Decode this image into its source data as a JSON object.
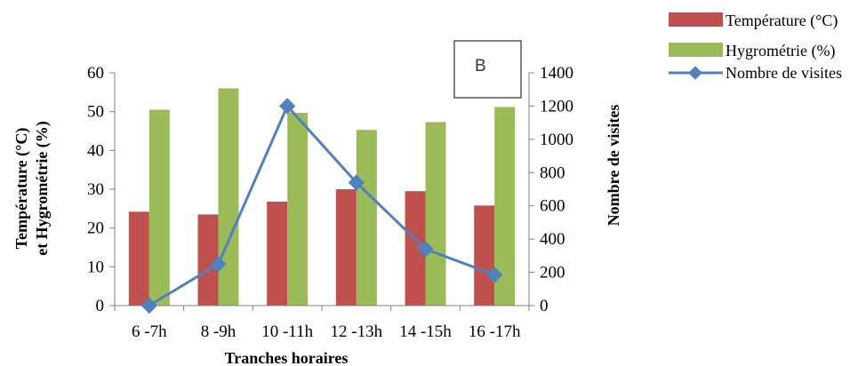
{
  "chart_data": {
    "type": "bar",
    "categories": [
      "6 -7h",
      "8 -9h",
      "10 -11h",
      "12 -13h",
      "14 -15h",
      "16 -17h"
    ],
    "series": [
      {
        "name": "Température (°C)",
        "type": "bar",
        "axis": "left",
        "color": "#c0504d",
        "values": [
          24.2,
          23.5,
          26.8,
          30,
          29.5,
          25.8
        ]
      },
      {
        "name": "Hygrométrie (%)",
        "type": "bar",
        "axis": "left",
        "color": "#9bbb59",
        "values": [
          50.5,
          56,
          49.7,
          45.3,
          47.3,
          51.2
        ]
      },
      {
        "name": "Nombre de visites",
        "type": "line",
        "axis": "right",
        "color": "#4f81bd",
        "values": [
          0,
          250,
          1200,
          740,
          340,
          185
        ]
      }
    ],
    "xlabel": "Tranches horaires",
    "ylabel_left_line1": "Température (°C)",
    "ylabel_left_line2": "et Hygrométrie (%)",
    "ylabel_right": "Nombre de visites",
    "ylim_left": [
      0,
      60
    ],
    "ylim_right": [
      0,
      1400
    ],
    "yticks_left": [
      "0",
      "10",
      "20",
      "30",
      "40",
      "50",
      "60"
    ],
    "yticks_right": [
      "0",
      "200",
      "400",
      "600",
      "800",
      "1000",
      "1200",
      "1400"
    ],
    "panel_label": "B",
    "legend_position": "top-right",
    "grid": false
  }
}
